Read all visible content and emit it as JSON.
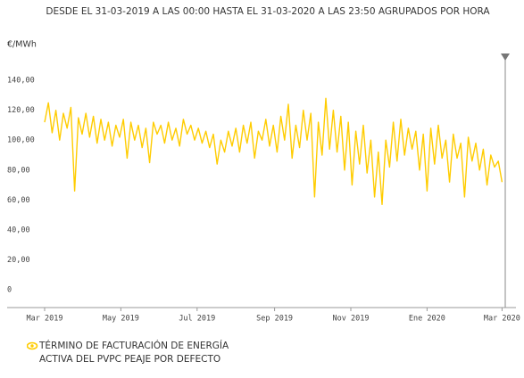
{
  "chart_data": {
    "type": "line",
    "title": "DESDE EL 31-03-2019 A LAS 00:00 HASTA EL 31-03-2020 A LAS 23:50 AGRUPADOS POR HORA",
    "y_label": "€/MWh",
    "xlim": [
      -10,
      375
    ],
    "xticks": [
      {
        "value": 0,
        "label": "Mar 2019"
      },
      {
        "value": 61,
        "label": "May 2019"
      },
      {
        "value": 122,
        "label": "Jul 2019"
      },
      {
        "value": 184,
        "label": "Sep 2019"
      },
      {
        "value": 245,
        "label": "Nov 2019"
      },
      {
        "value": 306,
        "label": "Ene 2020"
      },
      {
        "value": 366,
        "label": "Mar 2020"
      }
    ],
    "ylim": [
      -12,
      158
    ],
    "yticks": [
      0,
      {
        "value": 20,
        "label": "20,00"
      },
      {
        "value": 40,
        "label": "40,00"
      },
      {
        "value": 60,
        "label": "60,00"
      },
      {
        "value": 80,
        "label": "80,00"
      },
      {
        "value": 100,
        "label": "100,00"
      },
      {
        "value": 120,
        "label": "120,00"
      },
      {
        "value": 140,
        "label": "140,00"
      }
    ],
    "x": [
      0,
      3,
      6,
      9,
      12,
      15,
      18,
      21,
      24,
      27,
      30,
      33,
      36,
      39,
      42,
      45,
      48,
      51,
      54,
      57,
      60,
      63,
      66,
      69,
      72,
      75,
      78,
      81,
      84,
      87,
      90,
      93,
      96,
      99,
      102,
      105,
      108,
      111,
      114,
      117,
      120,
      123,
      126,
      129,
      132,
      135,
      138,
      141,
      144,
      147,
      150,
      153,
      156,
      159,
      162,
      165,
      168,
      171,
      174,
      177,
      180,
      183,
      186,
      189,
      192,
      195,
      198,
      201,
      204,
      207,
      210,
      213,
      216,
      219,
      222,
      225,
      228,
      231,
      234,
      237,
      240,
      243,
      246,
      249,
      252,
      255,
      258,
      261,
      264,
      267,
      270,
      273,
      276,
      279,
      282,
      285,
      288,
      291,
      294,
      297,
      300,
      303,
      306,
      309,
      312,
      315,
      318,
      321,
      324,
      327,
      330,
      333,
      336,
      339,
      342,
      345,
      348,
      351,
      354,
      357,
      360,
      363,
      366
    ],
    "series": [
      {
        "name": "TÉRMINO DE FACTURACIÓN DE ENERGÍA ACTIVA DEL PVPC PEAJE POR DEFECTO",
        "color": "#ffcc00",
        "values": [
          112,
          125,
          105,
          120,
          100,
          118,
          108,
          122,
          66,
          115,
          104,
          118,
          102,
          116,
          98,
          114,
          100,
          112,
          96,
          110,
          102,
          114,
          88,
          112,
          100,
          110,
          95,
          108,
          85,
          112,
          104,
          110,
          98,
          112,
          100,
          108,
          96,
          114,
          104,
          110,
          100,
          108,
          98,
          106,
          95,
          104,
          84,
          100,
          92,
          106,
          96,
          108,
          92,
          110,
          98,
          112,
          88,
          106,
          100,
          114,
          96,
          110,
          92,
          116,
          100,
          124,
          88,
          110,
          95,
          120,
          100,
          118,
          62,
          112,
          90,
          128,
          94,
          120,
          92,
          116,
          80,
          112,
          70,
          106,
          84,
          110,
          78,
          100,
          62,
          92,
          57,
          100,
          82,
          112,
          86,
          114,
          90,
          108,
          94,
          106,
          80,
          104,
          66,
          108,
          84,
          110,
          88,
          100,
          72,
          104,
          88,
          98,
          62,
          102,
          86,
          98,
          80,
          94,
          70,
          90,
          82,
          86,
          72
        ]
      }
    ]
  }
}
